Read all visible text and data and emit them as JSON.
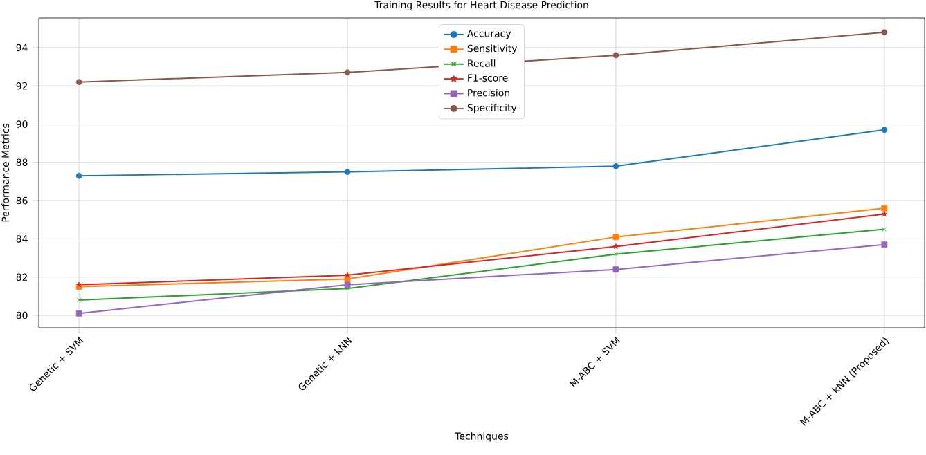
{
  "chart_data": {
    "type": "line",
    "title": "Training Results for Heart Disease Prediction",
    "xlabel": "Techniques",
    "ylabel": "Performance Metrics",
    "categories": [
      "Genetic + SVM",
      "Genetic + kNN",
      "M-ABC + SVM",
      "M-ABC + kNN (Proposed)"
    ],
    "ylim": [
      79.35,
      95.55
    ],
    "yticks": [
      80,
      82,
      84,
      86,
      88,
      90,
      92,
      94
    ],
    "grid": true,
    "legend": "top",
    "line_style": "solid",
    "series": [
      {
        "name": "Accuracy",
        "color": "#1f77b4",
        "marker": "circle",
        "values": [
          87.3,
          87.5,
          87.8,
          89.7
        ]
      },
      {
        "name": "Sensitivity",
        "color": "#ff7f0e",
        "marker": "square",
        "values": [
          81.5,
          81.9,
          84.1,
          85.6
        ]
      },
      {
        "name": "Recall",
        "color": "#2ca02c",
        "marker": "cross",
        "values": [
          80.8,
          81.4,
          83.2,
          84.5
        ]
      },
      {
        "name": "F1-score",
        "color": "#d62728",
        "marker": "star",
        "values": [
          81.6,
          82.1,
          83.6,
          85.3
        ]
      },
      {
        "name": "Precision",
        "color": "#9467bd",
        "marker": "square",
        "values": [
          80.1,
          81.6,
          82.4,
          83.7
        ]
      },
      {
        "name": "Specificity",
        "color": "#8c564b",
        "marker": "circle",
        "values": [
          92.2,
          92.7,
          93.6,
          94.8
        ]
      }
    ]
  }
}
